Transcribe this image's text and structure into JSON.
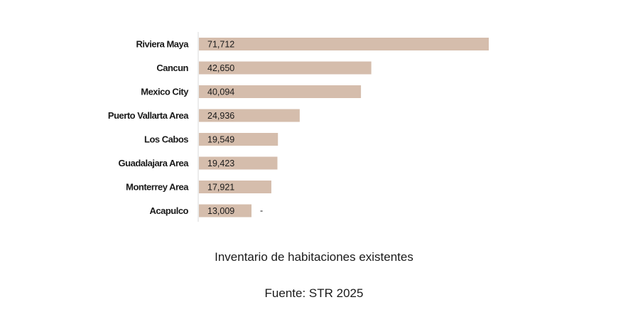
{
  "chart_data": {
    "type": "bar",
    "orientation": "horizontal",
    "categories": [
      "Riviera Maya",
      "Cancun",
      "Mexico City",
      "Puerto Vallarta Area",
      "Los Cabos",
      "Guadalajara Area",
      "Monterrey Area",
      "Acapulco"
    ],
    "values": [
      71712,
      42650,
      40094,
      24936,
      19549,
      19423,
      17921,
      13009
    ],
    "value_labels": [
      "71,712",
      "42,650",
      "40,094",
      "24,936",
      "19,549",
      "19,423",
      "17,921",
      "13,009"
    ],
    "extra_marks": [
      "",
      "",
      "",
      "",
      "",
      "",
      "",
      "-"
    ],
    "xlim": [
      0,
      75000
    ],
    "grid": false,
    "legend": "none",
    "bar_color": "#d5bdac",
    "caption": "Inventario de  habitaciones existentes",
    "source": "Fuente: STR 2025"
  }
}
